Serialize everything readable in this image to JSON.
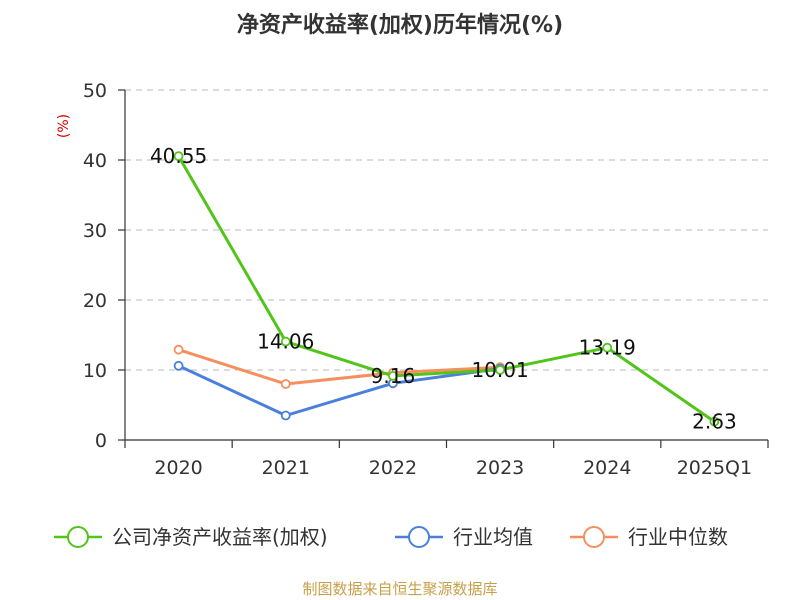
{
  "chart_data": {
    "type": "line",
    "title": "净资产收益率(加权)历年情况(%)",
    "ylabel": "(%)",
    "xlabel": "",
    "categories": [
      "2020",
      "2021",
      "2022",
      "2023",
      "2024",
      "2025Q1"
    ],
    "ylim": [
      0,
      50
    ],
    "yticks": [
      0,
      10,
      20,
      30,
      40,
      50
    ],
    "grid": true,
    "legend_position": "bottom",
    "series": [
      {
        "name": "公司净资产收益率(加权)",
        "color": "#52c41a",
        "values": [
          40.55,
          14.06,
          9.16,
          10.01,
          13.19,
          2.63
        ],
        "labels": [
          "40.55",
          "14.06",
          "9.16",
          "10.01",
          "13.19",
          "2.63"
        ]
      },
      {
        "name": "行业均值",
        "color": "#4a7fdc",
        "values": [
          10.6,
          3.5,
          8.1,
          10.2,
          null,
          null
        ]
      },
      {
        "name": "行业中位数",
        "color": "#f5905e",
        "values": [
          12.9,
          8.0,
          9.6,
          10.4,
          null,
          null
        ]
      }
    ]
  },
  "source": "制图数据来自恒生聚源数据库"
}
